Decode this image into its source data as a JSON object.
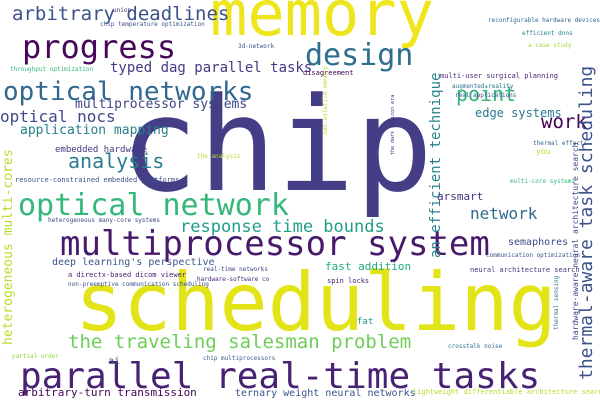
{
  "words": [
    "chip",
    "scheduling",
    "memory",
    "multiprocessor system",
    "parallel real-time tasks",
    "optical network",
    "progress",
    "design",
    "optical networks",
    "arbitrary deadlines",
    "the traveling salesman problem",
    "point",
    "work",
    "thermal-aware task scheduling",
    "typed dag parallel tasks",
    "multiprocessor systems",
    "optical nocs",
    "application mapping",
    "analysis",
    "embedded hardware",
    "resource-constrained embedded platforms",
    "heterogeneous multi-cores",
    "response time bounds",
    "an efficient technique",
    "network",
    "edge systems",
    "arsmart",
    "semaphores",
    "deep learning's perspective",
    "fast addition",
    "a directx-based dicom viewer",
    "non-preemptive communication scheduling",
    "hardware-software co",
    "real-time networks",
    "spin locks",
    "neural architecture search",
    "hardware-aware neural architecture search",
    "thermal sensing",
    "fat",
    "crosstalk noise",
    "arbitrary-turn transmission",
    "ai",
    "chip multiprocessors",
    "partial order",
    "ternary weight neural networks",
    "lightweight differentiable architecture search",
    "reconfigurable hardware devices",
    "efficient dnns",
    "a case study",
    "chip temperature optimization",
    "union",
    "3d-network",
    "throughput optimization",
    "disagreement",
    "multi-user surgical planning",
    "augmented reality",
    "real applications",
    "non-volatile memory",
    "the dark silicon era",
    "the analysis",
    "thermal effects",
    "you",
    "multi-core systems",
    "communication optimization",
    "heterogeneous many-core systems"
  ]
}
